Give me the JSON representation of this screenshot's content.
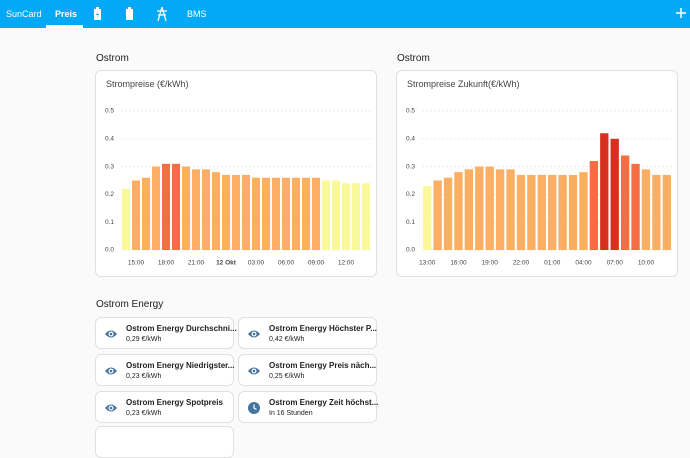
{
  "header": {
    "tabs": [
      "SunCard",
      "Preis",
      "BMS"
    ],
    "active_tab": "Preis"
  },
  "sections": [
    {
      "title": "Ostrom"
    },
    {
      "title": "Ostrom"
    },
    {
      "title": "Ostrom Energy"
    }
  ],
  "chart_data": [
    {
      "type": "bar",
      "title": "Strompreise (€/kWh)",
      "categories": [
        null,
        "15:00",
        null,
        null,
        "18:00",
        null,
        null,
        "21:00",
        null,
        null,
        "12 Okt",
        null,
        null,
        "03:00",
        null,
        null,
        "06:00",
        null,
        null,
        "09:00",
        null,
        null,
        "12:00",
        null,
        null
      ],
      "values": [
        0.22,
        0.25,
        0.26,
        0.3,
        0.31,
        0.31,
        0.3,
        0.29,
        0.29,
        0.28,
        0.27,
        0.27,
        0.27,
        0.26,
        0.26,
        0.26,
        0.26,
        0.26,
        0.26,
        0.26,
        0.25,
        0.25,
        0.24,
        0.24,
        0.24
      ],
      "colors": [
        "#f9f99b",
        "#fcae62",
        "#fcae62",
        "#fcae62",
        "#f46d43",
        "#f46d43",
        "#fcae62",
        "#fcae62",
        "#fcae62",
        "#fcae62",
        "#fcae62",
        "#fcae62",
        "#fcae62",
        "#fcae62",
        "#fcae62",
        "#fcae62",
        "#fcae62",
        "#fcae62",
        "#fcae62",
        "#fcae62",
        "#f9f99b",
        "#f9f99b",
        "#f9f99b",
        "#f9f99b",
        "#f9f99b"
      ],
      "ylim": [
        0,
        0.5
      ],
      "yticks": [
        {
          "value": 0,
          "label": "0.0"
        },
        0.1,
        0.2,
        0.3,
        0.4,
        0.5
      ],
      "grid": true
    },
    {
      "type": "bar",
      "title": "Strompreise Zukunft(€/kWh)",
      "categories": [
        "13:00",
        null,
        null,
        "16:00",
        null,
        null,
        "19:00",
        null,
        null,
        "22:00",
        null,
        null,
        "01:00",
        null,
        null,
        "04:00",
        null,
        null,
        "07:00",
        null,
        null,
        "10:00",
        null,
        null
      ],
      "values": [
        0.23,
        0.25,
        0.26,
        0.28,
        0.29,
        0.3,
        0.3,
        0.29,
        0.29,
        0.27,
        0.27,
        0.27,
        0.27,
        0.27,
        0.27,
        0.28,
        0.32,
        0.42,
        0.4,
        0.34,
        0.31,
        0.29,
        0.27,
        0.27
      ],
      "colors": [
        "#f9f99b",
        "#fcae62",
        "#fcae62",
        "#fcae62",
        "#fcae62",
        "#fcae62",
        "#fcae62",
        "#fcae62",
        "#fcae62",
        "#fcae62",
        "#fcae62",
        "#fcae62",
        "#fcae62",
        "#fcae62",
        "#fcae62",
        "#fcae62",
        "#f46d43",
        "#d7301f",
        "#d7301f",
        "#f46d43",
        "#f46d43",
        "#fcae62",
        "#fcae62",
        "#fcae62"
      ],
      "ylim": [
        0,
        0.5
      ],
      "yticks": [
        {
          "value": 0,
          "label": "0.0"
        },
        0.1,
        0.2,
        0.3,
        0.4,
        0.5
      ],
      "grid": true
    }
  ],
  "entities": [
    {
      "name": "Ostrom Energy Durchschni...",
      "state": "0,29 €/kWh"
    },
    {
      "name": "Ostrom Energy Höchster P...",
      "state": "0,42 €/kWh"
    },
    {
      "name": "Ostrom Energy Niedrigster...",
      "state": "0,23 €/kWh"
    },
    {
      "name": "Ostrom Energy Preis näch...",
      "state": "0,25 €/kWh"
    },
    {
      "name": "Ostrom Energy Spotpreis",
      "state": "0,23 €/kWh"
    },
    {
      "name": "Ostrom Energy Zeit höchst...",
      "state": "In 16 Stunden"
    }
  ]
}
